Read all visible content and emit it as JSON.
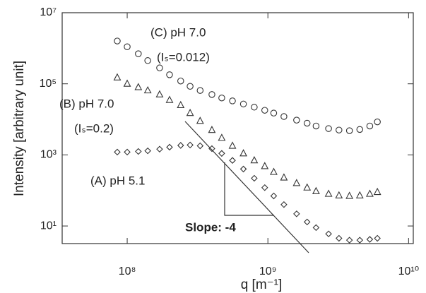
{
  "chart_data": {
    "type": "scatter",
    "x_label": "q [m⁻¹]",
    "y_label": "Intensity [arbitrary unit]",
    "x_scale": "log",
    "y_scale": "log",
    "xlim": [
      34500000,
      10800000000
    ],
    "ylim": [
      3.2,
      10000000
    ],
    "xticks": [
      {
        "value": 100000000,
        "label": "10⁸"
      },
      {
        "value": 1000000000,
        "label": "10⁹"
      },
      {
        "value": 10000000000,
        "label": "10¹⁰"
      }
    ],
    "yticks": [
      {
        "value": 10,
        "label": "10¹"
      },
      {
        "value": 1000,
        "label": "10³"
      },
      {
        "value": 100000,
        "label": "10⁵"
      },
      {
        "value": 10000000,
        "label": "10⁷"
      }
    ],
    "x": [
      85000000,
      100000000,
      120000000,
      140000000,
      170000000,
      200000000,
      240000000,
      280000000,
      330000000,
      400000000,
      470000000,
      560000000,
      670000000,
      800000000,
      950000000,
      1100000000,
      1300000000,
      1600000000,
      1900000000,
      2200000000,
      2700000000,
      3200000000,
      3800000000,
      4500000000,
      5300000000,
      6000000000
    ],
    "series": [
      {
        "marker": "diamond",
        "color": "#333333",
        "values": [
          1200,
          1200,
          1250,
          1300,
          1450,
          1650,
          1850,
          1900,
          1800,
          1500,
          1100,
          700,
          400,
          220,
          120,
          70,
          40,
          22,
          13,
          9,
          6,
          4.5,
          4,
          4,
          4.2,
          4.5
        ]
      },
      {
        "marker": "triangle",
        "color": "#333333",
        "values": [
          150000,
          100000,
          80000,
          65000,
          50000,
          35000,
          25000,
          15000,
          9000,
          5000,
          3000,
          1800,
          1100,
          700,
          480,
          330,
          230,
          160,
          120,
          95,
          80,
          72,
          70,
          72,
          80,
          90
        ]
      },
      {
        "marker": "circle",
        "color": "#333333",
        "values": [
          1600000,
          1100000,
          700000,
          450000,
          280000,
          180000,
          120000,
          85000,
          65000,
          50000,
          40000,
          33000,
          27000,
          22000,
          18000,
          15000,
          12000,
          9500,
          7800,
          6500,
          5500,
          5000,
          4800,
          5200,
          6500,
          8500
        ]
      }
    ],
    "annotations": [
      "(C) pH 7.0",
      "(Iₛ=0.012)",
      "(B) pH 7.0",
      "(Iₛ=0.2)",
      "(A) pH 5.1",
      "Slope: -4"
    ]
  }
}
